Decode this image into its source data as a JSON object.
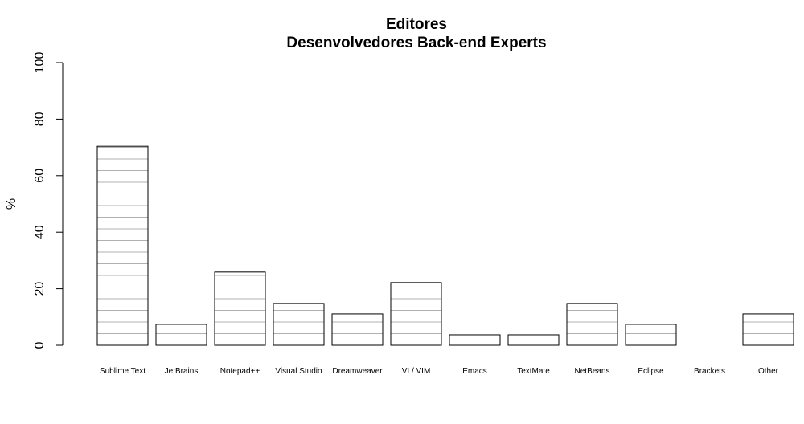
{
  "chart_data": {
    "type": "bar",
    "title": "Editores",
    "subtitle": "Desenvolvedores Back-end Experts",
    "xlabel": "",
    "ylabel": "%",
    "ylim": [
      0,
      100
    ],
    "yticks": [
      "0",
      "20",
      "40",
      "60",
      "80",
      "100"
    ],
    "grid": false,
    "legend": "none",
    "categories": [
      "Sublime Text",
      "JetBrains",
      "Notepad++",
      "Visual Studio",
      "Dreamweaver",
      "VI / VIM",
      "Emacs",
      "TextMate",
      "NetBeans",
      "Eclipse",
      "Brackets",
      "Other"
    ],
    "values": [
      70.4,
      7.4,
      25.9,
      14.8,
      11.1,
      22.2,
      3.7,
      3.7,
      14.8,
      7.4,
      0,
      11.1
    ],
    "bar_fill": "#ffffff",
    "bar_stroke": "#000000",
    "bar_hatch_color": "#b0b0b0"
  }
}
